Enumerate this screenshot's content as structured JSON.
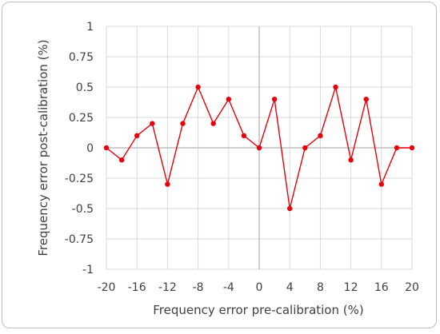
{
  "chart_data": {
    "type": "line",
    "title": "",
    "xlabel": "Frequency error pre-calibration (%)",
    "ylabel": "Frequency error post-calibration (%)",
    "xlim": [
      -20,
      20
    ],
    "ylim": [
      -1,
      1
    ],
    "x_ticks": [
      -20,
      -16,
      -12,
      -8,
      -4,
      0,
      4,
      8,
      12,
      16,
      20
    ],
    "y_ticks": [
      -1,
      -0.75,
      -0.5,
      -0.25,
      0,
      0.25,
      0.5,
      0.75,
      1
    ],
    "x_tick_labels": [
      "-20",
      "-16",
      "-12",
      "-8",
      "-4",
      "0",
      "4",
      "8",
      "12",
      "16",
      "20"
    ],
    "y_tick_labels": [
      "-1",
      "-0.75",
      "-0.5",
      "-0.25",
      "0",
      "0.25",
      "0.5",
      "0.75",
      "1"
    ],
    "grid": true,
    "legend": "none",
    "series": [
      {
        "color": "#e8000b",
        "x": [
          -20,
          -18,
          -16,
          -14,
          -12,
          -10,
          -8,
          -6,
          -4,
          -2,
          0,
          2,
          4,
          6,
          8,
          10,
          12,
          14,
          16,
          18,
          20
        ],
        "y": [
          0,
          -0.1,
          0.1,
          0.2,
          -0.3,
          0.2,
          0.5,
          0.2,
          0.4,
          0.1,
          0,
          0.4,
          -0.5,
          0,
          0.1,
          0.5,
          -0.1,
          0.4,
          -0.3,
          0,
          0
        ]
      }
    ]
  }
}
